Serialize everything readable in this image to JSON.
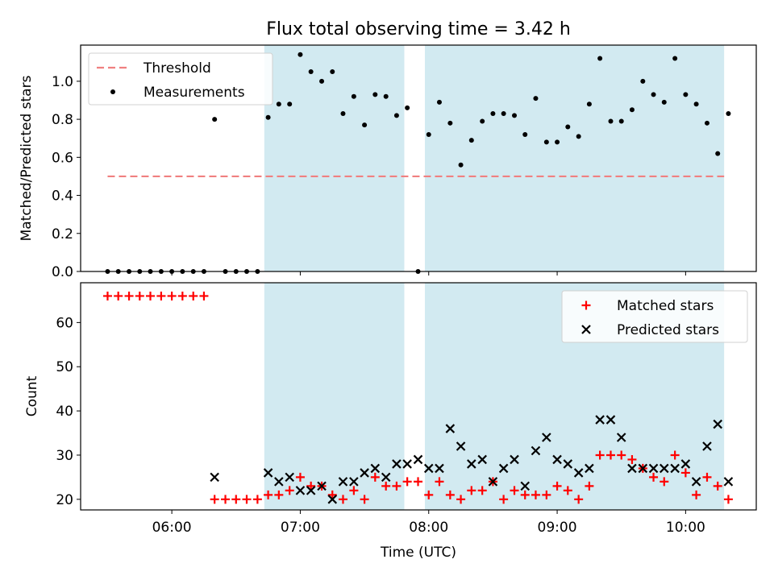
{
  "title": "Flux total observing time = 3.42 h",
  "colors": {
    "threshold": "#f08080",
    "shade": "#add8e6",
    "matched": "#ff0000",
    "predicted": "#000000",
    "measurement": "#000000"
  },
  "chart_data": [
    {
      "type": "scatter",
      "ylabel": "Matched/Predicted stars",
      "xlim": [
        5.29,
        10.55
      ],
      "ylim": [
        0,
        1.19
      ],
      "yticks": [
        0.0,
        0.2,
        0.4,
        0.6,
        0.8,
        1.0
      ],
      "ytick_labels": [
        "0.0",
        "0.2",
        "0.4",
        "0.6",
        "0.8",
        "1.0"
      ],
      "shaded_intervals_utc_hours": [
        [
          6.72,
          7.81
        ],
        [
          7.97,
          10.3
        ]
      ],
      "legend": {
        "position": "upper-left",
        "entries": [
          "Threshold",
          "Measurements"
        ]
      },
      "series": [
        {
          "name": "Threshold",
          "kind": "dashed-line",
          "x": [
            5.5,
            10.3
          ],
          "y": [
            0.5,
            0.5
          ]
        },
        {
          "name": "Measurements",
          "kind": "points",
          "x": [
            5.5,
            5.583,
            5.667,
            5.75,
            5.833,
            5.917,
            6.0,
            6.083,
            6.167,
            6.25,
            6.333,
            6.417,
            6.5,
            6.583,
            6.667,
            6.75,
            6.833,
            6.917,
            7.0,
            7.083,
            7.167,
            7.25,
            7.333,
            7.417,
            7.5,
            7.583,
            7.667,
            7.75,
            7.833,
            7.917,
            8.0,
            8.083,
            8.167,
            8.25,
            8.333,
            8.417,
            8.5,
            8.583,
            8.667,
            8.75,
            8.833,
            8.917,
            9.0,
            9.083,
            9.167,
            9.25,
            9.333,
            9.417,
            9.5,
            9.583,
            9.667,
            9.75,
            9.833,
            9.917,
            10.0,
            10.083,
            10.167,
            10.25,
            10.333
          ],
          "y": [
            0,
            0,
            0,
            0,
            0,
            0,
            0,
            0,
            0,
            0,
            0.8,
            0,
            0,
            0,
            0,
            0.81,
            0.88,
            0.88,
            1.14,
            1.05,
            1.0,
            1.05,
            0.83,
            0.92,
            0.77,
            0.93,
            0.92,
            0.82,
            0.86,
            0,
            0.72,
            0.89,
            0.78,
            0.56,
            0.69,
            0.79,
            0.83,
            0.83,
            0.82,
            0.72,
            0.91,
            0.68,
            0.68,
            0.76,
            0.71,
            0.88,
            1.12,
            0.79,
            0.79,
            0.85,
            1.0,
            0.93,
            0.89,
            1.12,
            0.93,
            0.88,
            0.78,
            0.62,
            0.83
          ]
        }
      ]
    },
    {
      "type": "scatter",
      "ylabel": "Count",
      "xlabel": "Time (UTC)",
      "xlim": [
        5.29,
        10.55
      ],
      "ylim": [
        17.6,
        69
      ],
      "yticks": [
        20,
        30,
        40,
        50,
        60
      ],
      "ytick_labels": [
        "20",
        "30",
        "40",
        "50",
        "60"
      ],
      "xticks": [
        6,
        7,
        8,
        9,
        10
      ],
      "xtick_labels": [
        "06:00",
        "07:00",
        "08:00",
        "09:00",
        "10:00"
      ],
      "shaded_intervals_utc_hours": [
        [
          6.72,
          7.81
        ],
        [
          7.97,
          10.3
        ]
      ],
      "legend": {
        "position": "upper-right",
        "entries": [
          "Matched stars",
          "Predicted stars"
        ]
      },
      "series": [
        {
          "name": "Matched stars",
          "marker": "+",
          "x": [
            5.5,
            5.583,
            5.667,
            5.75,
            5.833,
            5.917,
            6.0,
            6.083,
            6.167,
            6.25,
            6.333,
            6.417,
            6.5,
            6.583,
            6.667,
            6.75,
            6.833,
            6.917,
            7.0,
            7.083,
            7.167,
            7.25,
            7.333,
            7.417,
            7.5,
            7.583,
            7.667,
            7.75,
            7.833,
            7.917,
            8.0,
            8.083,
            8.167,
            8.25,
            8.333,
            8.417,
            8.5,
            8.583,
            8.667,
            8.75,
            8.833,
            8.917,
            9.0,
            9.083,
            9.167,
            9.25,
            9.333,
            9.417,
            9.5,
            9.583,
            9.667,
            9.75,
            9.833,
            9.917,
            10.0,
            10.083,
            10.167,
            10.25,
            10.333
          ],
          "y": [
            66,
            66,
            66,
            66,
            66,
            66,
            66,
            66,
            66,
            66,
            20,
            20,
            20,
            20,
            20,
            21,
            21,
            22,
            25,
            23,
            23,
            21,
            20,
            22,
            20,
            25,
            23,
            23,
            24,
            24,
            21,
            24,
            21,
            20,
            22,
            22,
            24,
            20,
            22,
            21,
            21,
            21,
            23,
            22,
            20,
            23,
            30,
            30,
            30,
            29,
            27,
            25,
            24,
            30,
            26,
            21,
            25,
            23,
            20
          ]
        },
        {
          "name": "Predicted stars",
          "marker": "x",
          "x": [
            6.333,
            6.75,
            6.833,
            6.917,
            7.0,
            7.083,
            7.167,
            7.25,
            7.333,
            7.417,
            7.5,
            7.583,
            7.667,
            7.75,
            7.833,
            7.917,
            8.0,
            8.083,
            8.167,
            8.25,
            8.333,
            8.417,
            8.5,
            8.583,
            8.667,
            8.75,
            8.833,
            8.917,
            9.0,
            9.083,
            9.167,
            9.25,
            9.333,
            9.417,
            9.5,
            9.583,
            9.667,
            9.75,
            9.833,
            9.917,
            10.0,
            10.083,
            10.167,
            10.25,
            10.333
          ],
          "y": [
            25,
            26,
            24,
            25,
            22,
            22,
            23,
            20,
            24,
            24,
            26,
            27,
            25,
            28,
            28,
            29,
            27,
            27,
            36,
            32,
            28,
            29,
            24,
            27,
            29,
            23,
            31,
            34,
            29,
            28,
            26,
            27,
            38,
            38,
            34,
            27,
            27,
            27,
            27,
            27,
            28,
            24,
            32,
            37,
            24
          ]
        }
      ]
    }
  ]
}
